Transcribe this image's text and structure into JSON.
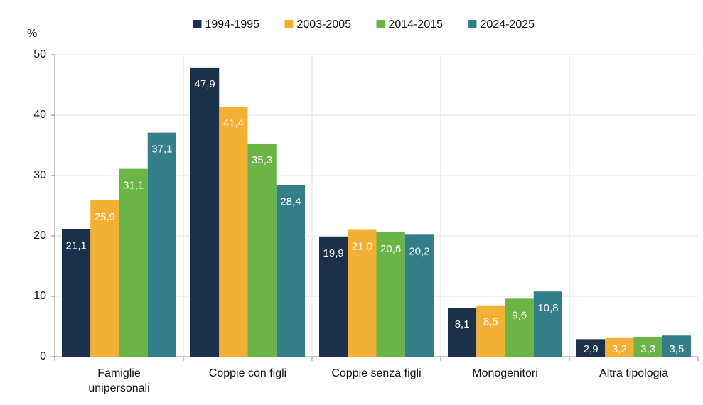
{
  "chart_data": {
    "type": "bar",
    "y_label": "%",
    "categories": [
      "Famiglie unipersonali",
      "Coppie con figli",
      "Coppie senza figli",
      "Monogenitori",
      "Altra tipologia"
    ],
    "series": [
      {
        "name": "1994-1995",
        "color": "#1b3049",
        "values": [
          21.1,
          47.9,
          19.9,
          8.1,
          2.9
        ],
        "value_labels": [
          "21,1",
          "47,9",
          "19,9",
          "8,1",
          "2,9"
        ]
      },
      {
        "name": "2003-2005",
        "color": "#f2b134",
        "values": [
          25.9,
          41.4,
          21.0,
          8.5,
          3.2
        ],
        "value_labels": [
          "25,9",
          "41,4",
          "21,0",
          "8,5",
          "3,2"
        ]
      },
      {
        "name": "2014-2015",
        "color": "#6ab545",
        "values": [
          31.1,
          35.3,
          20.6,
          9.6,
          3.3
        ],
        "value_labels": [
          "31,1",
          "35,3",
          "20,6",
          "9,6",
          "3,3"
        ]
      },
      {
        "name": "2024-2025",
        "color": "#347e8c",
        "values": [
          37.1,
          28.4,
          20.2,
          10.8,
          3.5
        ],
        "value_labels": [
          "37,1",
          "28,4",
          "20,2",
          "10,8",
          "3,5"
        ]
      }
    ],
    "ylim": [
      0,
      50
    ],
    "yticks": [
      0,
      10,
      20,
      30,
      40,
      50
    ],
    "grid": true,
    "legend": "top"
  }
}
